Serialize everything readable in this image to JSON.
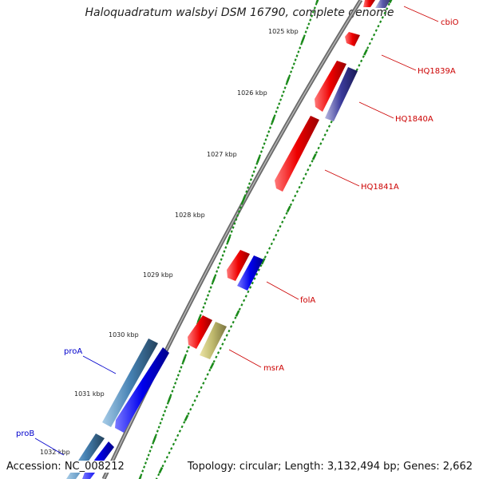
{
  "title": "Haloquadratum walsbyi DSM 16790, complete genome",
  "footer": {
    "accession": "Accession: NC_008212",
    "topology": "Topology: circular; Length: 3,132,494 bp; Genes: 2,662"
  },
  "ticks": [
    "1025 kbp",
    "1026 kbp",
    "1027 kbp",
    "1028 kbp",
    "1029 kbp",
    "1030 kbp",
    "1031 kbp",
    "1032 kbp"
  ],
  "gene_labels": {
    "right": [
      "cbiO",
      "HQ1839A",
      "HQ1840A",
      "HQ1841A",
      "folA",
      "msrA"
    ],
    "left": [
      "proA",
      "proB"
    ]
  },
  "colors": {
    "backbone": "#808080",
    "tick_marks": "#1a8a1a",
    "red_features": "#ee0000",
    "blue_features": "#0000ee",
    "steel_features": "#4682b4",
    "khaki_features": "#bdb76b",
    "navy_features": "#3a3a9a",
    "label_right": "#cc0000",
    "label_left": "#0000cc"
  }
}
